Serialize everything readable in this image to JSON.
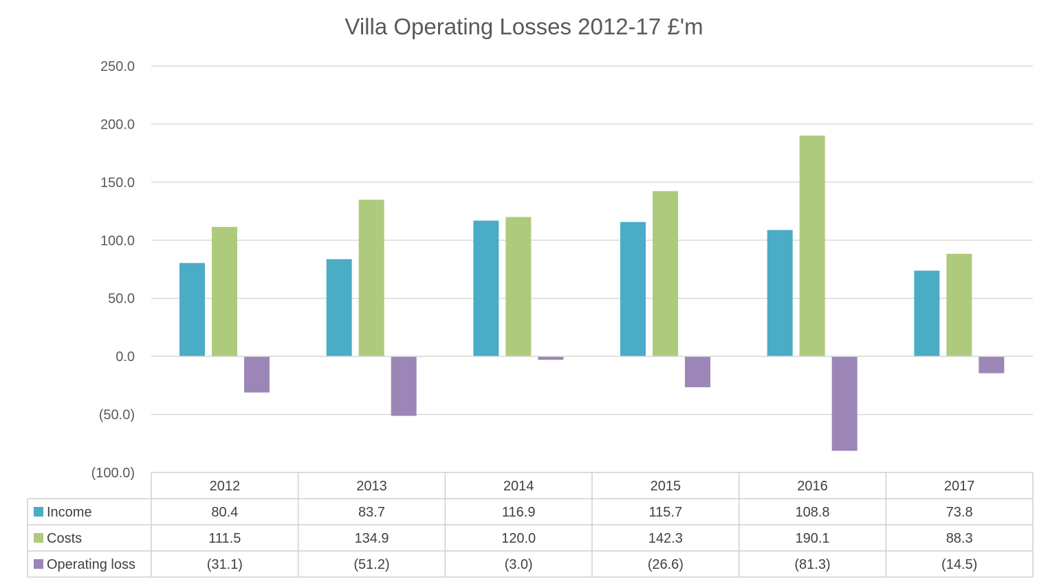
{
  "chart_data": {
    "type": "bar",
    "title": "Villa Operating Losses 2012-17 £'m",
    "categories": [
      "2012",
      "2013",
      "2014",
      "2015",
      "2016",
      "2017"
    ],
    "series": [
      {
        "name": "Income",
        "color": "#4bacc6",
        "values": [
          80.4,
          83.7,
          116.9,
          115.7,
          108.8,
          73.8
        ],
        "labels": [
          "80.4",
          "83.7",
          "116.9",
          "115.7",
          "108.8",
          "73.8"
        ]
      },
      {
        "name": "Costs",
        "color": "#aeca7c",
        "values": [
          111.5,
          134.9,
          120.0,
          142.3,
          190.1,
          88.3
        ],
        "labels": [
          "111.5",
          "134.9",
          "120.0",
          "142.3",
          "190.1",
          "88.3"
        ]
      },
      {
        "name": "Operating loss",
        "color": "#9c86b8",
        "values": [
          -31.1,
          -51.2,
          -3.0,
          -26.6,
          -81.3,
          -14.5
        ],
        "labels": [
          "(31.1)",
          "(51.2)",
          "(3.0)",
          "(26.6)",
          "(81.3)",
          "(14.5)"
        ]
      }
    ],
    "ylim": [
      -100,
      250
    ],
    "yticks": [
      250,
      200,
      150,
      100,
      50,
      0,
      -50,
      -100
    ],
    "ytick_labels": [
      "250.0",
      "200.0",
      "150.0",
      "100.0",
      "50.0",
      "0.0",
      "(50.0)",
      "(100.0)"
    ],
    "grid": true,
    "legend": "data table"
  }
}
